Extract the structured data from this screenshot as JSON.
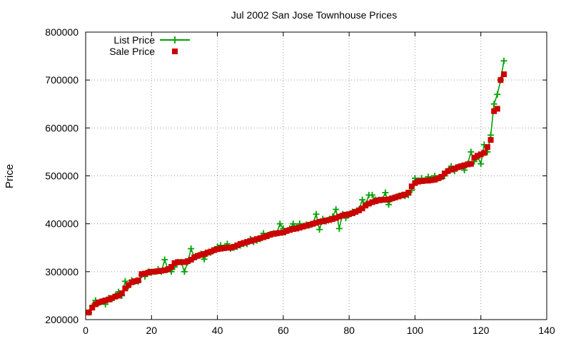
{
  "chart_data": {
    "type": "line",
    "title": "Jul 2002 San Jose Townhouse Prices",
    "xlabel": "",
    "ylabel": "Price",
    "xlim": [
      0,
      140
    ],
    "ylim": [
      200000,
      800000
    ],
    "x_ticks": [
      0,
      20,
      40,
      60,
      80,
      100,
      120,
      140
    ],
    "y_ticks": [
      200000,
      300000,
      400000,
      500000,
      600000,
      700000,
      800000
    ],
    "x_tick_labels": [
      "0",
      "20",
      "40",
      "60",
      "80",
      "100",
      "120",
      "140"
    ],
    "y_tick_labels": [
      "200000",
      "300000",
      "400000",
      "500000",
      "600000",
      "700000",
      "800000"
    ],
    "grid": true,
    "legend_position": "top-left",
    "series": [
      {
        "name": "List Price",
        "style": "line-with-plus-markers",
        "color": "#00a000",
        "x": [
          1,
          2,
          3,
          4,
          5,
          6,
          7,
          8,
          9,
          10,
          11,
          12,
          13,
          14,
          15,
          16,
          17,
          18,
          19,
          20,
          21,
          22,
          23,
          24,
          25,
          26,
          27,
          28,
          29,
          30,
          31,
          32,
          33,
          34,
          35,
          36,
          37,
          38,
          39,
          40,
          41,
          42,
          43,
          44,
          45,
          46,
          47,
          48,
          49,
          50,
          51,
          52,
          53,
          54,
          55,
          56,
          57,
          58,
          59,
          60,
          61,
          62,
          63,
          64,
          65,
          66,
          67,
          68,
          69,
          70,
          71,
          72,
          73,
          74,
          75,
          76,
          77,
          78,
          79,
          80,
          81,
          82,
          83,
          84,
          85,
          86,
          87,
          88,
          89,
          90,
          91,
          92,
          93,
          94,
          95,
          96,
          97,
          98,
          99,
          100,
          101,
          102,
          103,
          104,
          105,
          106,
          107,
          108,
          109,
          110,
          111,
          112,
          113,
          114,
          115,
          116,
          117,
          118,
          119,
          120,
          121,
          122,
          123,
          124,
          125,
          126,
          127
        ],
        "y": [
          215000,
          228000,
          240000,
          235000,
          238000,
          232000,
          245000,
          243000,
          250000,
          258000,
          250000,
          280000,
          270000,
          282000,
          280000,
          280000,
          293000,
          290000,
          300000,
          298000,
          300000,
          305000,
          300000,
          325000,
          305000,
          300000,
          310000,
          320000,
          320000,
          300000,
          320000,
          348000,
          330000,
          333000,
          337000,
          326000,
          338000,
          340000,
          345000,
          352000,
          355000,
          350000,
          358000,
          348000,
          350000,
          352000,
          355000,
          358000,
          358000,
          368000,
          362000,
          365000,
          368000,
          380000,
          375000,
          378000,
          380000,
          380000,
          400000,
          390000,
          385000,
          390000,
          400000,
          392000,
          400000,
          395000,
          398000,
          397000,
          400000,
          420000,
          388000,
          410000,
          405000,
          410000,
          415000,
          430000,
          390000,
          420000,
          412000,
          420000,
          425000,
          425000,
          430000,
          450000,
          440000,
          460000,
          460000,
          450000,
          450000,
          450000,
          465000,
          440000,
          452000,
          455000,
          458000,
          460000,
          458000,
          460000,
          470000,
          495000,
          490000,
          495000,
          490000,
          498000,
          495000,
          500000,
          495000,
          497000,
          500000,
          510000,
          520000,
          510000,
          518000,
          520000,
          512000,
          525000,
          550000,
          530000,
          540000,
          525000,
          565000,
          550000,
          585000,
          650000,
          670000,
          700000,
          740000
        ]
      },
      {
        "name": "Sale Price",
        "style": "square-markers",
        "color": "#cc0000",
        "x": [
          1,
          2,
          3,
          4,
          5,
          6,
          7,
          8,
          9,
          10,
          11,
          12,
          13,
          14,
          15,
          16,
          17,
          18,
          19,
          20,
          21,
          22,
          23,
          24,
          25,
          26,
          27,
          28,
          29,
          30,
          31,
          32,
          33,
          34,
          35,
          36,
          37,
          38,
          39,
          40,
          41,
          42,
          43,
          44,
          45,
          46,
          47,
          48,
          49,
          50,
          51,
          52,
          53,
          54,
          55,
          56,
          57,
          58,
          59,
          60,
          61,
          62,
          63,
          64,
          65,
          66,
          67,
          68,
          69,
          70,
          71,
          72,
          73,
          74,
          75,
          76,
          77,
          78,
          79,
          80,
          81,
          82,
          83,
          84,
          85,
          86,
          87,
          88,
          89,
          90,
          91,
          92,
          93,
          94,
          95,
          96,
          97,
          98,
          99,
          100,
          101,
          102,
          103,
          104,
          105,
          106,
          107,
          108,
          109,
          110,
          111,
          112,
          113,
          114,
          115,
          116,
          117,
          118,
          119,
          120,
          121,
          122,
          123,
          124,
          125,
          126,
          127
        ],
        "y": [
          215000,
          225000,
          232000,
          236000,
          238000,
          240000,
          242000,
          245000,
          248000,
          250000,
          255000,
          265000,
          272000,
          278000,
          280000,
          282000,
          295000,
          296000,
          298000,
          300000,
          300000,
          301000,
          302000,
          303000,
          305000,
          310000,
          318000,
          320000,
          320000,
          320000,
          322000,
          325000,
          330000,
          333000,
          335000,
          337000,
          340000,
          342000,
          345000,
          347000,
          348000,
          349000,
          350000,
          350000,
          352000,
          355000,
          358000,
          360000,
          362000,
          364000,
          366000,
          368000,
          370000,
          372000,
          374000,
          377000,
          379000,
          380000,
          381000,
          382000,
          385000,
          387000,
          389000,
          390000,
          392000,
          394000,
          396000,
          398000,
          400000,
          402000,
          404000,
          405000,
          407000,
          408000,
          410000,
          412000,
          415000,
          417000,
          419000,
          420000,
          422000,
          425000,
          428000,
          432000,
          438000,
          442000,
          445000,
          447000,
          449000,
          450000,
          450000,
          451000,
          453000,
          455000,
          457000,
          459000,
          461000,
          465000,
          478000,
          485000,
          488000,
          489000,
          490000,
          490000,
          491000,
          492000,
          495000,
          498000,
          505000,
          510000,
          513000,
          515000,
          518000,
          520000,
          522000,
          524000,
          525000,
          538000,
          542000,
          545000,
          548000,
          560000,
          575000,
          635000,
          640000,
          700000,
          712000
        ]
      }
    ]
  }
}
